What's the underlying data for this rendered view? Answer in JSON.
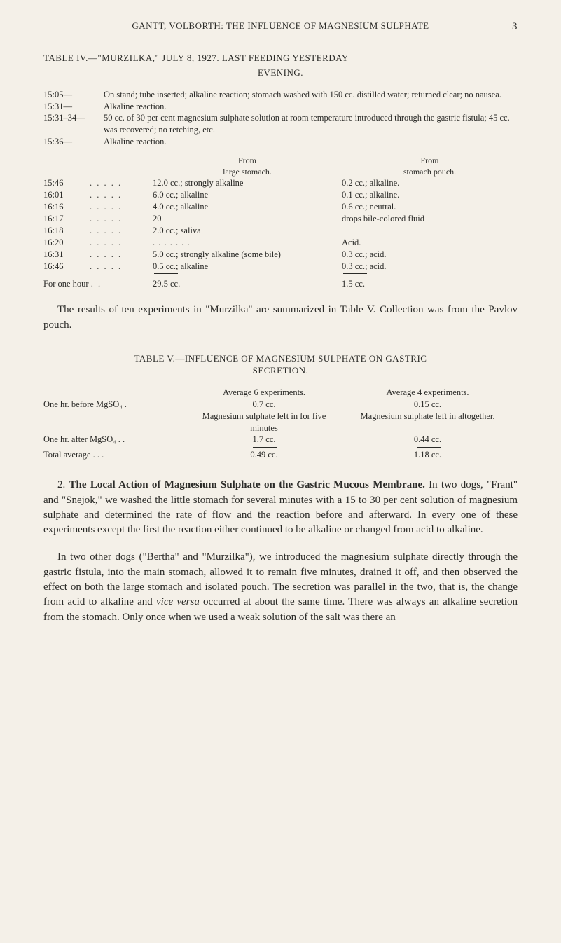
{
  "page": {
    "running_head": "GANTT, VOLBORTH: THE INFLUENCE OF MAGNESIUM SULPHATE",
    "number": "3"
  },
  "table4": {
    "title_caps": "TABLE IV.—\"MURZILKA,\" JULY 8, 1927.  LAST FEEDING YESTERDAY",
    "title_line2": "EVENING.",
    "prelim": [
      {
        "time": "15:05—",
        "text": "On stand; tube inserted; alkaline reaction; stomach washed with 150 cc. distilled water; returned clear; no nausea."
      },
      {
        "time": "15:31—",
        "text": "Alkaline reaction."
      },
      {
        "time": "15:31–34—",
        "text": "50 cc. of 30 per cent magnesium sulphate solution at room temperature introduced through the gastric fistula; 45 cc. was recovered; no retching, etc."
      },
      {
        "time": "15:36—",
        "text": "Alkaline reaction."
      }
    ],
    "hdr_from1a": "From",
    "hdr_from1b": "large stomach.",
    "hdr_from2a": "From",
    "hdr_from2b": "stomach pouch.",
    "rows": [
      {
        "t": "15:46",
        "a": "12.0 cc.; strongly alkaline",
        "b": "0.2 cc.; alkaline."
      },
      {
        "t": "16:01",
        "a": "6.0 cc.; alkaline",
        "b": "0.1 cc.; alkaline."
      },
      {
        "t": "16:16",
        "a": "4.0 cc.; alkaline",
        "b": "0.6 cc.; neutral."
      },
      {
        "t": "16:17",
        "a": "20",
        "b": "drops bile-colored fluid"
      },
      {
        "t": "16:18",
        "a": "2.0 cc.; saliva",
        "b": ""
      },
      {
        "t": "16:20",
        "a": "",
        "b": "Acid.",
        "adots": true
      },
      {
        "t": "16:31",
        "a": "5.0 cc.; strongly alkaline (some bile)",
        "b": "0.3 cc.; acid."
      },
      {
        "t": "16:46",
        "a": "0.5 cc.; alkaline",
        "b": "0.3 cc.; acid."
      }
    ],
    "for_one_label": "For one hour",
    "for_one_a": "29.5 cc.",
    "for_one_b": "1.5 cc."
  },
  "para1": "The results of ten experiments in \"Murzilka\" are summarized in Table V.  Collection was from the Pavlov pouch.",
  "table5": {
    "title": "TABLE V.—INFLUENCE OF MAGNESIUM SULPHATE ON GASTRIC",
    "subtitle": "SECRETION.",
    "hdr2": "Average 6 experiments.",
    "hdr3": "Average 4 experiments.",
    "r1_label": "One hr. before MgSO₄   .",
    "r1_a": "0.7 cc.",
    "r1_b": "0.15 cc.",
    "mid2": "Magnesium sulphate left in for five minutes",
    "mid3": "Magnesium sulphate left in altogether.",
    "r2_label": "One hr. after MgSO₄ .  .",
    "r2_a": "1.7 cc.",
    "r2_b": "0.44 cc.",
    "tot_label": "Total average   .   .   .",
    "tot_a": "0.49 cc.",
    "tot_b": "1.18 cc."
  },
  "section2": {
    "lead_num": "2.",
    "lead_bold": "The Local Action of Magnesium Sulphate on the Gastric Mucous Membrane.",
    "p1_rest": "  In two dogs, \"Frant\" and \"Snejok,\" we washed the little stomach for several minutes with a 15 to 30 per cent solution of magnesium sulphate and determined the rate of flow and the reaction before and afterward.  In every one of these experiments except the first the reaction either continued to be alkaline or changed from acid to alkaline.",
    "p2": "In two other dogs (\"Bertha\" and \"Murzilka\"), we introduced the magnesium sulphate directly through the gastric fistula, into the main stomach, allowed it to remain five minutes, drained it off, and then observed the effect on both the large stomach and isolated pouch.  The secretion was parallel in the two, that is, the change from acid to alkaline and vice versa occurred at about the same time.  There was always an alkaline secretion from the stomach. Only once when we used a weak solution of the salt was there an"
  }
}
